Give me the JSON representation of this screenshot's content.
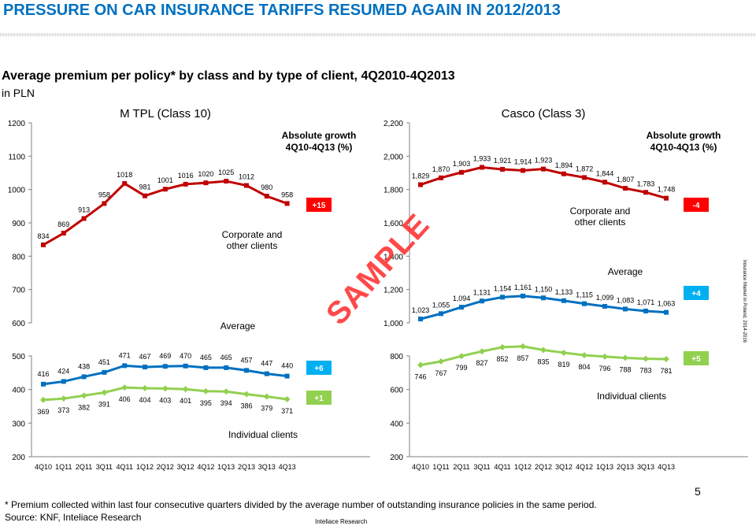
{
  "header": {
    "title": "PRESSURE ON CAR INSURANCE TARIFFS RESUMED AGAIN IN 2012/2013",
    "subtitle": "Average premium per policy* by class and by type of client, 4Q2010-4Q2013",
    "unit": "in PLN"
  },
  "footer": {
    "note": "* Premium collected within last four consecutive quarters divided by the average number of outstanding insurance policies in the same period.",
    "source": "Source: KNF, Inteliace Research",
    "publisher": "Inteliace Research",
    "page": "5",
    "side_note": "Insurance Market in Poland, 2014-2016",
    "watermark": "SAMPLE"
  },
  "colors": {
    "corporate": "#C00000",
    "average": "#0070C0",
    "individual": "#92D050",
    "badge_red": "#FF0000",
    "badge_blue": "#00B0F0",
    "badge_green": "#92D050",
    "title": "#0070C0"
  },
  "chart_data": [
    {
      "type": "line",
      "title": "M TPL (Class 10)",
      "categories": [
        "4Q10",
        "1Q11",
        "2Q11",
        "3Q11",
        "4Q11",
        "1Q12",
        "2Q12",
        "3Q12",
        "4Q12",
        "1Q13",
        "2Q13",
        "3Q13",
        "4Q13"
      ],
      "growth_header": [
        "Absolute growth",
        "4Q10-4Q13 (%)"
      ],
      "upper": {
        "ylim": [
          600,
          1200
        ],
        "yticks": [
          "1200",
          "1100",
          "1000",
          "900",
          "800",
          "700",
          "600"
        ],
        "series": [
          {
            "name": "Corporate and other clients",
            "values": [
              834,
              869,
              913,
              958,
              1018,
              981,
              1001,
              1016,
              1020,
              1025,
              1012,
              980,
              958
            ],
            "growth": "+15"
          },
          {
            "name": "Average",
            "values": [],
            "growth": ""
          }
        ]
      },
      "lower": {
        "ylim": [
          200,
          500
        ],
        "yticks": [
          "500",
          "400",
          "300",
          "200"
        ],
        "series": [
          {
            "name": "Average",
            "values": [
              416,
              424,
              438,
              451,
              471,
              467,
              469,
              470,
              465,
              465,
              457,
              447,
              440
            ],
            "growth": "+6"
          },
          {
            "name": "Individual clients",
            "values": [
              369,
              373,
              382,
              391,
              406,
              404,
              403,
              401,
              395,
              394,
              386,
              379,
              371
            ],
            "growth": "+1"
          }
        ]
      }
    },
    {
      "type": "line",
      "title": "Casco (Class 3)",
      "categories": [
        "4Q10",
        "1Q11",
        "2Q11",
        "3Q11",
        "4Q11",
        "1Q12",
        "2Q12",
        "3Q12",
        "4Q12",
        "1Q13",
        "2Q13",
        "3Q13",
        "4Q13"
      ],
      "growth_header": [
        "Absolute growth",
        "4Q10-4Q13 (%)"
      ],
      "upper": {
        "ylim": [
          1000,
          2200
        ],
        "yticks": [
          "2,200",
          "2,000",
          "1,800",
          "1,600",
          "1,400",
          "1,200",
          "1,000"
        ],
        "series": [
          {
            "name": "Corporate and other clients",
            "values": [
              1829,
              1870,
              1903,
              1933,
              1921,
              1914,
              1923,
              1894,
              1872,
              1844,
              1807,
              1783,
              1748
            ],
            "growth": "-4"
          },
          {
            "name": "Average",
            "values": [
              1023,
              1055,
              1094,
              1131,
              1154,
              1161,
              1150,
              1133,
              1115,
              1099,
              1083,
              1071,
              1063
            ],
            "growth": "+4"
          }
        ]
      },
      "lower": {
        "ylim": [
          200,
          800
        ],
        "yticks": [
          "800",
          "600",
          "400",
          "200"
        ],
        "series": [
          {
            "name": "Individual clients",
            "values": [
              746,
              767,
              799,
              827,
              852,
              857,
              835,
              819,
              804,
              796,
              788,
              783,
              781
            ],
            "growth": "+5"
          }
        ]
      }
    }
  ]
}
